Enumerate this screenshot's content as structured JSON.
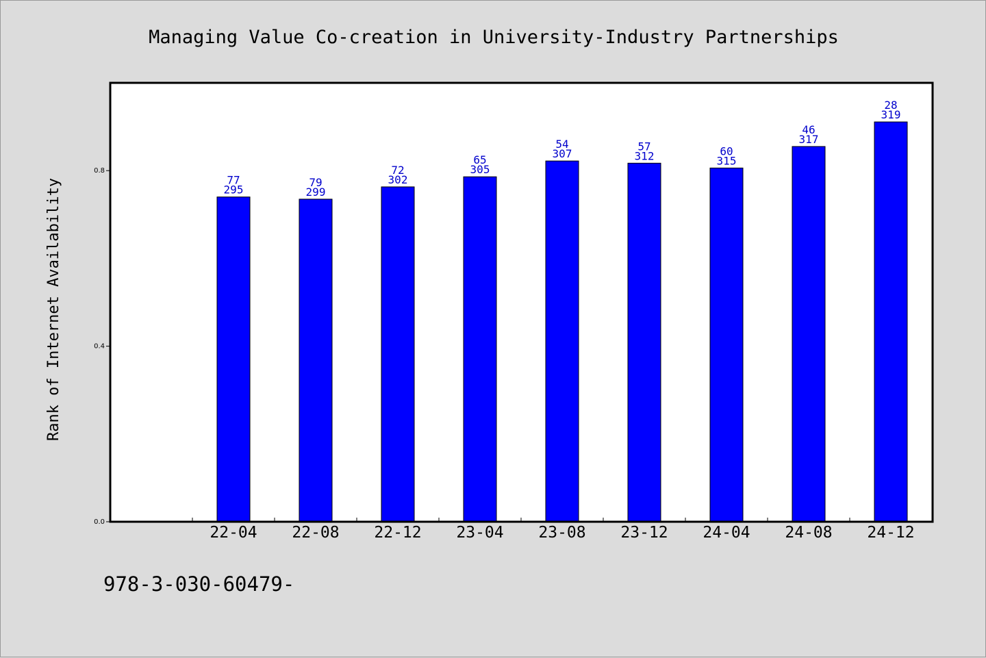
{
  "chart_data": {
    "type": "bar",
    "title": "Managing Value Co-creation in University-Industry Partnerships",
    "xlabel": "",
    "ylabel": "Rank of Internet Availability",
    "ylim": [
      0,
      1.0
    ],
    "yticks": [
      "0.0",
      "0.4",
      "0.8"
    ],
    "ytick_values": [
      0.0,
      0.4,
      0.8
    ],
    "grid": false,
    "categories": [
      "22-04",
      "22-08",
      "22-12",
      "23-04",
      "23-08",
      "23-12",
      "24-04",
      "24-08",
      "24-12"
    ],
    "values": [
      0.74,
      0.735,
      0.763,
      0.786,
      0.822,
      0.817,
      0.806,
      0.855,
      0.911
    ],
    "label_top": [
      "77",
      "79",
      "72",
      "65",
      "54",
      "57",
      "60",
      "46",
      "28"
    ],
    "label_bottom": [
      "295",
      "299",
      "302",
      "305",
      "307",
      "312",
      "315",
      "317",
      "319"
    ],
    "bar_color": "#0000ff",
    "label_color": "#0000cc"
  },
  "footer": {
    "text": "978-3-030-60479-"
  }
}
